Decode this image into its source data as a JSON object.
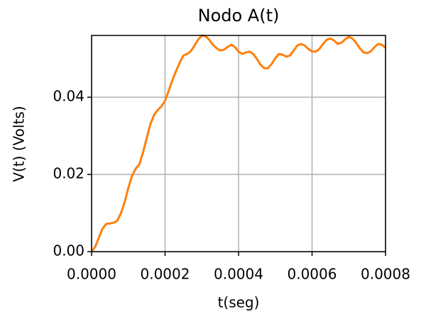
{
  "chart_data": {
    "type": "line",
    "title": "Nodo A(t)",
    "xlabel": "t(seg)",
    "ylabel": "V(t) (Volts)",
    "color": "#ff7f0e",
    "grid": true,
    "xlim": [
      0,
      0.0008
    ],
    "ylim": [
      0,
      0.056
    ],
    "xticks": [
      {
        "value": 0,
        "label": "0.0000"
      },
      {
        "value": 0.0002,
        "label": "0.0002"
      },
      {
        "value": 0.0004,
        "label": "0.0004"
      },
      {
        "value": 0.0006,
        "label": "0.0006"
      },
      {
        "value": 0.0008,
        "label": "0.0008"
      }
    ],
    "yticks": [
      {
        "value": 0,
        "label": "0.00"
      },
      {
        "value": 0.02,
        "label": "0.02"
      },
      {
        "value": 0.04,
        "label": "0.04"
      }
    ],
    "x": [
      0,
      1e-05,
      2e-05,
      3e-05,
      4e-05,
      5e-05,
      6e-05,
      7e-05,
      8e-05,
      9e-05,
      0.0001,
      0.00011,
      0.00012,
      0.00013,
      0.00014,
      0.00015,
      0.00016,
      0.00017,
      0.00018,
      0.00019,
      0.0002,
      0.00021,
      0.00022,
      0.00023,
      0.00024,
      0.00025,
      0.00026,
      0.00027,
      0.00028,
      0.00029,
      0.0003,
      0.00031,
      0.00032,
      0.00033,
      0.00034,
      0.00035,
      0.00036,
      0.00037,
      0.00038,
      0.00039,
      0.0004,
      0.00041,
      0.00042,
      0.00043,
      0.00044,
      0.00045,
      0.00046,
      0.00047,
      0.00048,
      0.00049,
      0.0005,
      0.00051,
      0.00052,
      0.00053,
      0.00054,
      0.00055,
      0.00056,
      0.00057,
      0.00058,
      0.00059,
      0.0006,
      0.00061,
      0.00062,
      0.00063,
      0.00064,
      0.00065,
      0.00066,
      0.00067,
      0.00068,
      0.00069,
      0.0007,
      0.00071,
      0.00072,
      0.00073,
      0.00074,
      0.00075,
      0.00076,
      0.00077,
      0.00078,
      0.00079,
      0.0008
    ],
    "values": [
      0,
      0.0013,
      0.0037,
      0.006,
      0.0072,
      0.0073,
      0.0075,
      0.008,
      0.01,
      0.0128,
      0.0165,
      0.0196,
      0.0215,
      0.0226,
      0.0257,
      0.0294,
      0.033,
      0.0354,
      0.0367,
      0.0376,
      0.0391,
      0.0417,
      0.0444,
      0.0468,
      0.049,
      0.0508,
      0.0512,
      0.0519,
      0.0534,
      0.0549,
      0.056,
      0.0558,
      0.0549,
      0.0536,
      0.0527,
      0.0521,
      0.0523,
      0.053,
      0.0536,
      0.053,
      0.0518,
      0.0512,
      0.0516,
      0.0518,
      0.0512,
      0.0499,
      0.0484,
      0.0475,
      0.0475,
      0.0486,
      0.0501,
      0.0512,
      0.051,
      0.0505,
      0.0508,
      0.0521,
      0.0534,
      0.0538,
      0.0534,
      0.0525,
      0.0519,
      0.0518,
      0.0525,
      0.0538,
      0.0549,
      0.0552,
      0.0547,
      0.0538,
      0.0541,
      0.055,
      0.0556,
      0.0552,
      0.0541,
      0.0527,
      0.0516,
      0.0514,
      0.0519,
      0.053,
      0.0538,
      0.0536,
      0.0528
    ]
  }
}
